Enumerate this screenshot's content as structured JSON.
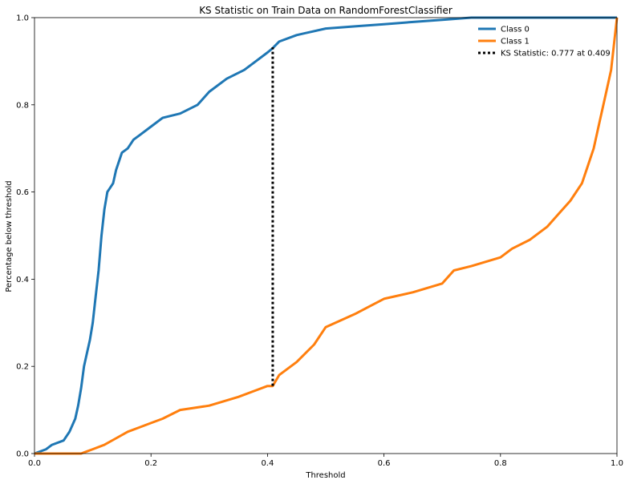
{
  "chart_data": {
    "type": "line",
    "title": "KS Statistic on Train Data on RandomForestClassifier",
    "xlabel": "Threshold",
    "ylabel": "Percentage below threshold",
    "xlim": [
      0,
      1
    ],
    "ylim": [
      0,
      1
    ],
    "x_ticks": [
      "0.0",
      "0.2",
      "0.4",
      "0.6",
      "0.8",
      "1.0"
    ],
    "y_ticks": [
      "0.0",
      "0.2",
      "0.4",
      "0.6",
      "0.8",
      "1.0"
    ],
    "grid": false,
    "legend_position": "top-right",
    "series": [
      {
        "name": "Class 0",
        "color": "#1f77b4",
        "x": [
          0,
          0.02,
          0.03,
          0.05,
          0.06,
          0.07,
          0.075,
          0.08,
          0.085,
          0.09,
          0.095,
          0.1,
          0.105,
          0.11,
          0.115,
          0.12,
          0.125,
          0.13,
          0.135,
          0.14,
          0.15,
          0.16,
          0.17,
          0.18,
          0.2,
          0.22,
          0.25,
          0.28,
          0.3,
          0.33,
          0.36,
          0.38,
          0.4,
          0.409,
          0.42,
          0.45,
          0.5,
          0.55,
          0.6,
          0.65,
          0.7,
          0.75,
          0.8,
          0.9,
          1.0
        ],
        "y": [
          0,
          0.01,
          0.02,
          0.03,
          0.05,
          0.08,
          0.11,
          0.15,
          0.2,
          0.23,
          0.26,
          0.3,
          0.36,
          0.42,
          0.5,
          0.56,
          0.6,
          0.61,
          0.62,
          0.65,
          0.69,
          0.7,
          0.72,
          0.73,
          0.75,
          0.77,
          0.78,
          0.8,
          0.83,
          0.86,
          0.88,
          0.9,
          0.92,
          0.93,
          0.945,
          0.96,
          0.975,
          0.98,
          0.985,
          0.99,
          0.995,
          1.0,
          1.0,
          1.0,
          1.0
        ]
      },
      {
        "name": "Class 1",
        "color": "#ff7f0e",
        "x": [
          0,
          0.05,
          0.08,
          0.09,
          0.1,
          0.12,
          0.14,
          0.16,
          0.18,
          0.2,
          0.22,
          0.25,
          0.3,
          0.35,
          0.38,
          0.4,
          0.409,
          0.42,
          0.45,
          0.48,
          0.5,
          0.55,
          0.6,
          0.65,
          0.7,
          0.72,
          0.75,
          0.8,
          0.82,
          0.85,
          0.88,
          0.9,
          0.92,
          0.94,
          0.95,
          0.96,
          0.97,
          0.98,
          0.99,
          1.0
        ],
        "y": [
          0,
          0,
          0,
          0.005,
          0.01,
          0.02,
          0.035,
          0.05,
          0.06,
          0.07,
          0.08,
          0.1,
          0.11,
          0.13,
          0.145,
          0.155,
          0.155,
          0.18,
          0.21,
          0.25,
          0.29,
          0.32,
          0.355,
          0.37,
          0.39,
          0.42,
          0.43,
          0.45,
          0.47,
          0.49,
          0.52,
          0.55,
          0.58,
          0.62,
          0.66,
          0.7,
          0.76,
          0.82,
          0.88,
          1.0
        ]
      }
    ],
    "ks_line": {
      "name": "KS Statistic: 0.777 at 0.409",
      "x": 0.409,
      "y_low": 0.155,
      "y_high": 0.932,
      "color": "#000000"
    }
  }
}
